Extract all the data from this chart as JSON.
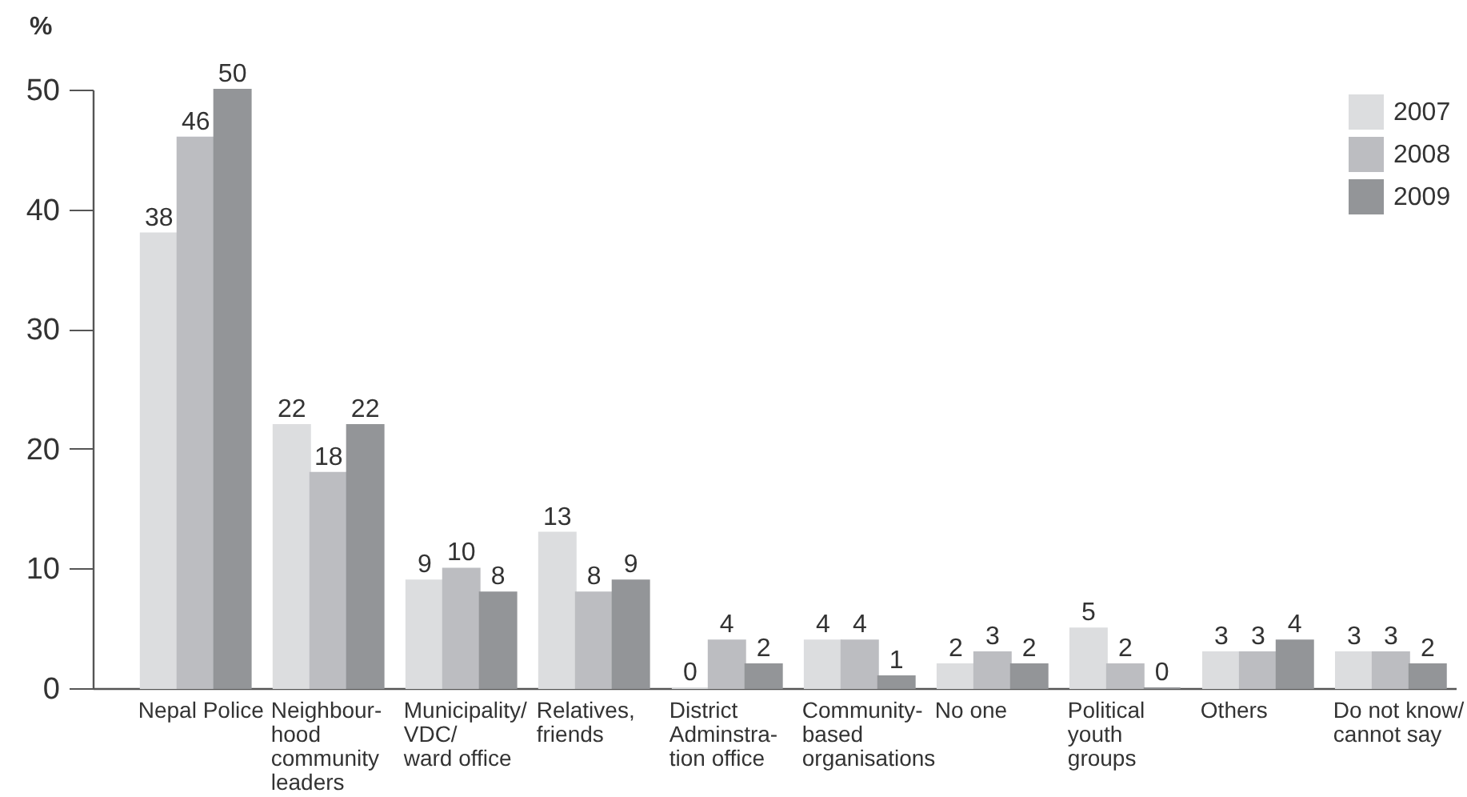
{
  "chart_data": {
    "type": "bar",
    "ylabel": "%",
    "categories": [
      "Nepal Police",
      "Neighbour-\nhood\ncommunity\nleaders",
      "Municipality/\nVDC/\nward office",
      "Relatives,\nfriends",
      "District\nAdminstra-\ntion office",
      "Community-\nbased\norganisations",
      "No one",
      "Political\nyouth\ngroups",
      "Others",
      "Do not know/\ncannot say"
    ],
    "series": [
      {
        "name": "2007",
        "color": "#dcdddf",
        "values": [
          38,
          22,
          9,
          13,
          0,
          4,
          2,
          5,
          3,
          3
        ]
      },
      {
        "name": "2008",
        "color": "#bcbdc1",
        "values": [
          46,
          18,
          10,
          8,
          4,
          4,
          3,
          2,
          3,
          3
        ]
      },
      {
        "name": "2009",
        "color": "#939598",
        "values": [
          50,
          22,
          8,
          9,
          2,
          1,
          2,
          0,
          4,
          2
        ]
      }
    ],
    "ylim": [
      0,
      50
    ],
    "yticks": [
      0,
      10,
      20,
      30,
      40,
      50
    ],
    "grid": false,
    "legend": "top right",
    "data_labels": true
  }
}
